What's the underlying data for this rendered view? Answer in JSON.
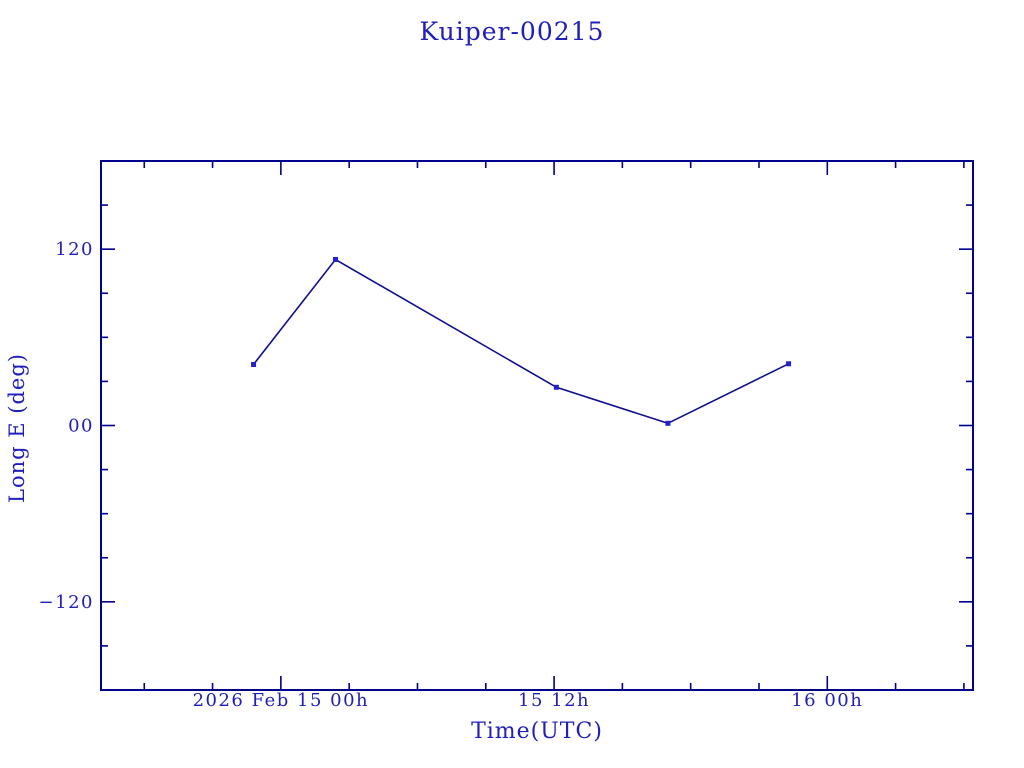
{
  "chart_data": {
    "type": "line",
    "title": "Kuiper-00215",
    "xlabel": "Time(UTC)",
    "ylabel": "Long E (deg)",
    "x_unit": "hours from 2026 Feb 15 00h UTC",
    "xlim": [
      -7.9,
      30.4
    ],
    "ylim": [
      -180,
      180
    ],
    "grid": false,
    "legend": false,
    "series": [
      {
        "name": "Long E",
        "marker": "square",
        "x": [
          -1.2,
          2.4,
          12.1,
          17.0,
          22.3
        ],
        "y": [
          41.5,
          113.0,
          26.0,
          1.5,
          42.0
        ]
      }
    ],
    "x_ticks_major": [
      {
        "value": 0,
        "label": "2026 Feb 15  00h"
      },
      {
        "value": 12,
        "label": "15  12h"
      },
      {
        "value": 24,
        "label": "16  00h"
      }
    ],
    "x_ticks_minor": [
      -6,
      -3,
      3,
      6,
      9,
      15,
      18,
      21,
      27,
      30
    ],
    "y_ticks_major": [
      {
        "value": 120,
        "label": "120"
      },
      {
        "value": 0,
        "label": "00"
      },
      {
        "value": -120,
        "label": "−120"
      }
    ],
    "y_ticks_minor": [
      150,
      90,
      60,
      30,
      -30,
      -60,
      -90,
      -150
    ],
    "colors": {
      "frame": "#00008b",
      "line": "#10108f",
      "marker": "#2222cc",
      "text": "#2020b8"
    }
  }
}
